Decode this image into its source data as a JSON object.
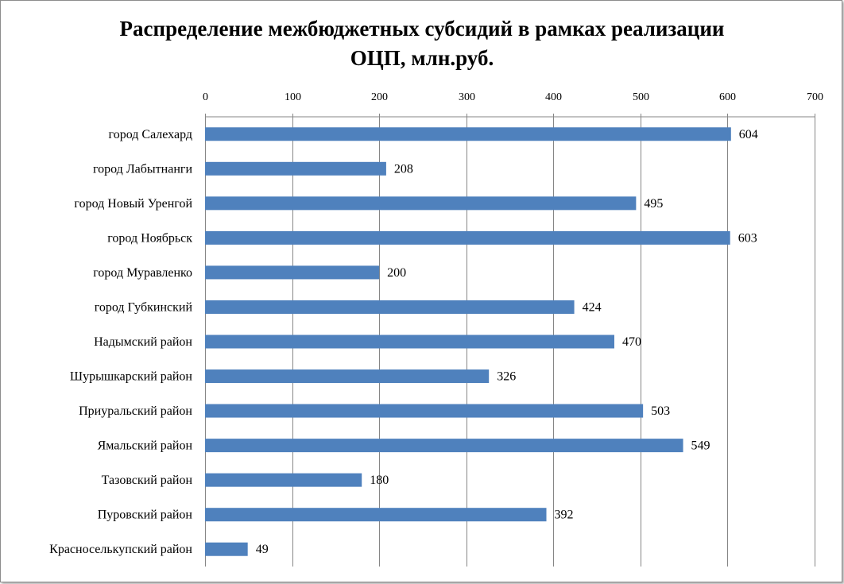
{
  "chart_data": {
    "type": "bar",
    "orientation": "horizontal",
    "title_lines": [
      "Распределение межбюджетных субсидий в рамках реализации",
      "ОЦП, млн.руб."
    ],
    "xlim": [
      0,
      700
    ],
    "x_ticks": [
      0,
      100,
      200,
      300,
      400,
      500,
      600,
      700
    ],
    "x_axis_position": "top",
    "grid": "vertical",
    "legend": "none",
    "bar_color": "#4f81bd",
    "categories": [
      "город Салехард",
      "город Лабытнанги",
      "город Новый Уренгой",
      "город Ноябрьск",
      "город Муравленко",
      "город Губкинский",
      "Надымский район",
      "Шурышкарский район",
      "Приуральский район",
      "Ямальский район",
      "Тазовский район",
      "Пуровский район",
      "Красноселькупский район"
    ],
    "values": [
      604,
      208,
      495,
      603,
      200,
      424,
      470,
      326,
      503,
      549,
      180,
      392,
      49
    ]
  }
}
